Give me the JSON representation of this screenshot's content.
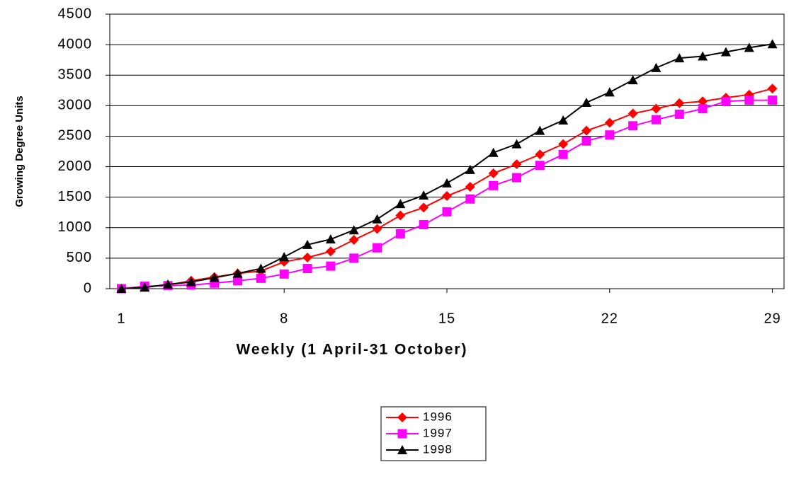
{
  "chart_data": {
    "type": "line",
    "xlabel": "Weekly (1 April-31 October)",
    "ylabel": "Growing Degree Units",
    "x": [
      1,
      2,
      3,
      4,
      5,
      6,
      7,
      8,
      9,
      10,
      11,
      12,
      13,
      14,
      15,
      16,
      17,
      18,
      19,
      20,
      21,
      22,
      23,
      24,
      25,
      26,
      27,
      28,
      29
    ],
    "xlim": [
      0.5,
      29.5
    ],
    "xticks": [
      1,
      8,
      15,
      22,
      29
    ],
    "ylim": [
      0,
      4500
    ],
    "yticks": [
      0,
      500,
      1000,
      1500,
      2000,
      2500,
      3000,
      3500,
      4000,
      4500
    ],
    "grid": true,
    "legend": "bottom",
    "series": [
      {
        "name": "1996",
        "color": "#ff0000",
        "marker": "diamond",
        "values": [
          0,
          30,
          60,
          130,
          190,
          250,
          290,
          440,
          510,
          610,
          800,
          980,
          1200,
          1330,
          1520,
          1670,
          1890,
          2040,
          2200,
          2370,
          2590,
          2720,
          2870,
          2950,
          3040,
          3070,
          3130,
          3180,
          3280
        ]
      },
      {
        "name": "1997",
        "color": "#ff00ff",
        "marker": "square",
        "values": [
          0,
          40,
          50,
          60,
          90,
          130,
          170,
          240,
          330,
          370,
          500,
          670,
          900,
          1050,
          1260,
          1470,
          1690,
          1820,
          2020,
          2200,
          2420,
          2520,
          2670,
          2770,
          2860,
          2950,
          3070,
          3090,
          3090
        ]
      },
      {
        "name": "1998",
        "color": "#000000",
        "marker": "triangle",
        "values": [
          0,
          20,
          70,
          110,
          180,
          250,
          330,
          520,
          720,
          810,
          960,
          1140,
          1390,
          1530,
          1730,
          1950,
          2230,
          2370,
          2590,
          2760,
          3050,
          3220,
          3420,
          3620,
          3780,
          3810,
          3880,
          3950,
          4010
        ]
      }
    ]
  }
}
